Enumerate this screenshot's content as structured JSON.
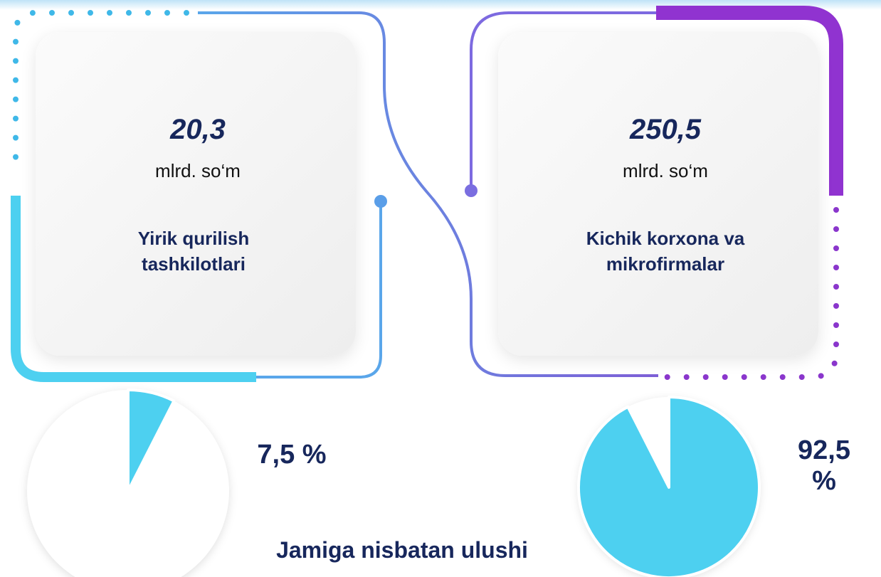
{
  "cards": [
    {
      "value": "20,3",
      "unit": "mlrd. so‘m",
      "label": "Yirik qurilish tashkilotlari",
      "share": 7.5,
      "share_label": "7,5 %"
    },
    {
      "value": "250,5",
      "unit": "mlrd. so‘m",
      "label": "Kichik korxona va mikrofirmalar",
      "share": 92.5,
      "share_label": "92,5 %"
    }
  ],
  "footer": "Jamiga nisbatan ulushi"
}
